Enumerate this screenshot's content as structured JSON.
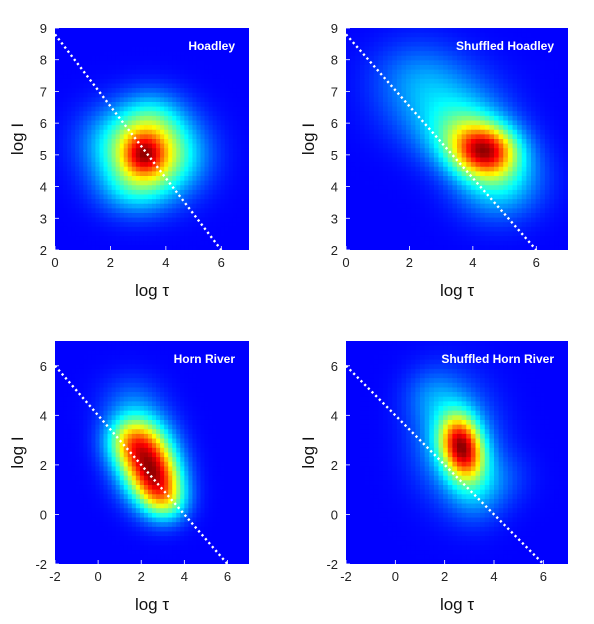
{
  "chart_data": [
    {
      "type": "heatmap",
      "title": "Hoadley",
      "xlabel": "log τ",
      "ylabel": "log I",
      "xlim": [
        0,
        7
      ],
      "ylim": [
        2,
        9
      ],
      "xticks": [
        "0",
        "2",
        "4",
        "6"
      ],
      "yticks": [
        "2",
        "3",
        "4",
        "5",
        "6",
        "7",
        "8",
        "9"
      ],
      "reference_line": {
        "x": [
          0,
          6
        ],
        "y": [
          8.8,
          2.0
        ],
        "style": "dotted",
        "color": "#ffffff"
      },
      "density_blobs": [
        {
          "x": 3.6,
          "y": 5.0,
          "sx": 1.1,
          "sy": 0.85,
          "w": 1.0
        },
        {
          "x": 3.2,
          "y": 5.0,
          "sx": 0.5,
          "sy": 0.45,
          "w": 0.6
        },
        {
          "x": 2.3,
          "y": 5.4,
          "sx": 1.0,
          "sy": 0.8,
          "w": 0.35
        },
        {
          "x": 3.5,
          "y": 6.2,
          "sx": 0.8,
          "sy": 0.6,
          "w": 0.3
        },
        {
          "x": 2.8,
          "y": 3.9,
          "sx": 0.9,
          "sy": 0.6,
          "w": 0.3
        }
      ]
    },
    {
      "type": "heatmap",
      "title": "Shuffled Hoadley",
      "xlabel": "log τ",
      "ylabel": "log I",
      "xlim": [
        0,
        7
      ],
      "ylim": [
        2,
        9
      ],
      "xticks": [
        "0",
        "2",
        "4",
        "6"
      ],
      "yticks": [
        "2",
        "3",
        "4",
        "5",
        "6",
        "7",
        "8",
        "9"
      ],
      "reference_line": {
        "x": [
          0,
          6
        ],
        "y": [
          8.8,
          2.0
        ],
        "style": "dotted",
        "color": "#ffffff"
      },
      "density_blobs": [
        {
          "x": 4.4,
          "y": 5.1,
          "sx": 0.7,
          "sy": 0.55,
          "w": 1.0
        },
        {
          "x": 3.8,
          "y": 5.6,
          "sx": 0.9,
          "sy": 0.7,
          "w": 0.5
        },
        {
          "x": 4.8,
          "y": 4.2,
          "sx": 0.9,
          "sy": 0.8,
          "w": 0.45
        },
        {
          "x": 3.0,
          "y": 6.6,
          "sx": 1.2,
          "sy": 0.9,
          "w": 0.28
        },
        {
          "x": 2.2,
          "y": 7.6,
          "sx": 1.0,
          "sy": 0.8,
          "w": 0.15
        }
      ]
    },
    {
      "type": "heatmap",
      "title": "Horn River",
      "xlabel": "log τ",
      "ylabel": "log I",
      "xlim": [
        -2,
        7
      ],
      "ylim": [
        -2,
        7
      ],
      "xticks": [
        "-2",
        "0",
        "2",
        "4",
        "6"
      ],
      "yticks": [
        "-2",
        "0",
        "2",
        "4",
        "6"
      ],
      "reference_line": {
        "x": [
          -2,
          6
        ],
        "y": [
          6.0,
          -2.0
        ],
        "style": "dotted",
        "color": "#ffffff"
      },
      "density_blobs": [
        {
          "x": 2.2,
          "y": 2.3,
          "sx": 0.9,
          "sy": 1.0,
          "w": 1.0
        },
        {
          "x": 2.8,
          "y": 1.3,
          "sx": 0.8,
          "sy": 0.8,
          "w": 0.75
        },
        {
          "x": 1.4,
          "y": 3.0,
          "sx": 0.8,
          "sy": 0.7,
          "w": 0.5
        },
        {
          "x": 3.2,
          "y": 0.5,
          "sx": 0.7,
          "sy": 0.6,
          "w": 0.4
        },
        {
          "x": 1.5,
          "y": 4.5,
          "sx": 1.0,
          "sy": 0.8,
          "w": 0.15
        }
      ]
    },
    {
      "type": "heatmap",
      "title": "Shuffled Horn River",
      "xlabel": "log τ",
      "ylabel": "log I",
      "xlim": [
        -2,
        7
      ],
      "ylim": [
        -2,
        7
      ],
      "xticks": [
        "-2",
        "0",
        "2",
        "4",
        "6"
      ],
      "yticks": [
        "-2",
        "0",
        "2",
        "4",
        "6"
      ],
      "reference_line": {
        "x": [
          -2,
          6
        ],
        "y": [
          6.0,
          -2.0
        ],
        "style": "dotted",
        "color": "#ffffff"
      },
      "density_blobs": [
        {
          "x": 2.5,
          "y": 3.1,
          "sx": 0.55,
          "sy": 0.75,
          "w": 0.9
        },
        {
          "x": 2.9,
          "y": 2.3,
          "sx": 0.55,
          "sy": 0.75,
          "w": 0.9
        },
        {
          "x": 2.4,
          "y": 3.0,
          "sx": 1.1,
          "sy": 1.5,
          "w": 0.45
        },
        {
          "x": 3.3,
          "y": 1.0,
          "sx": 0.8,
          "sy": 0.9,
          "w": 0.3
        },
        {
          "x": 1.5,
          "y": 4.8,
          "sx": 0.8,
          "sy": 0.8,
          "w": 0.2
        },
        {
          "x": 4.5,
          "y": 1.5,
          "sx": 0.8,
          "sy": 0.8,
          "w": 0.1
        }
      ]
    }
  ]
}
